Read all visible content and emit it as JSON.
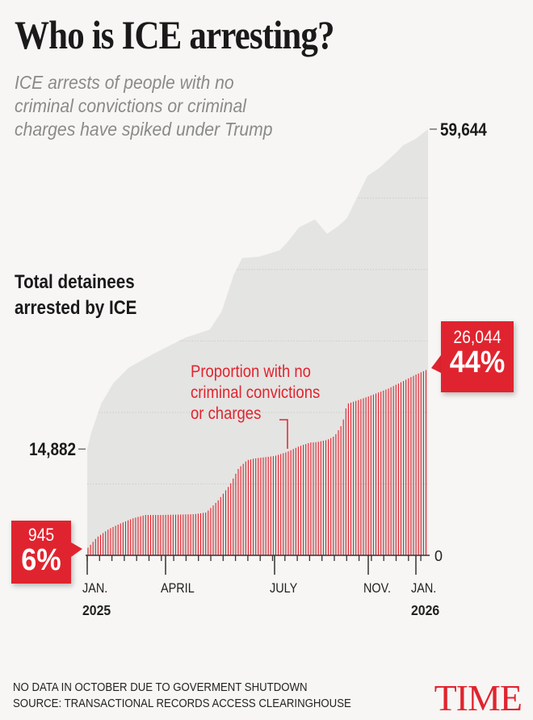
{
  "header": {
    "title": "Who is ICE arresting?",
    "subtitle": "ICE arrests of people with no criminal convictions or criminal charges have spiked under Trump"
  },
  "chart_data": {
    "type": "area",
    "title": "Who is ICE arresting?",
    "xlabel": "",
    "ylabel": "",
    "x_unit": "days since Jan. 1, 2025 (approx.)",
    "ylim": [
      0,
      59644
    ],
    "grid": true,
    "gridlines": [
      10000,
      20000,
      30000,
      40000,
      50000
    ],
    "x_ticks": [
      {
        "day": 0,
        "label": "JAN.",
        "year": "2025"
      },
      {
        "day": 90,
        "label": "APRIL",
        "year": ""
      },
      {
        "day": 181,
        "label": "JULY",
        "year": ""
      },
      {
        "day": 304,
        "label": "NOV.",
        "year": ""
      },
      {
        "day": 365,
        "label": "JAN.",
        "year": "2026"
      }
    ],
    "y_labels": [
      {
        "value": 14882,
        "label": "14,882"
      },
      {
        "value": 59644,
        "label": "59,644"
      },
      {
        "value": 0,
        "label": "0"
      }
    ],
    "series": [
      {
        "name": "Total detainees arrested by ICE",
        "color": "#e4e4e2",
        "x": [
          0,
          5,
          16,
          30,
          48,
          76,
          107,
          127,
          137,
          147,
          154,
          168,
          188,
          200,
          213,
          234,
          250,
          265,
          276,
          303,
          318,
          339,
          349,
          365,
          380
        ],
        "y": [
          14882,
          17300,
          21200,
          24100,
          26300,
          28200,
          30500,
          31600,
          34200,
          39300,
          41600,
          41800,
          42700,
          44100,
          45900,
          47000,
          45000,
          46100,
          47200,
          53100,
          54200,
          56300,
          57400,
          58300,
          59644
        ]
      },
      {
        "name": "Proportion with no criminal convictions or charges",
        "color": "#e0242f",
        "x": [
          0,
          11,
          25,
          39,
          53,
          67,
          86,
          114,
          124,
          134,
          144,
          151,
          158,
          164,
          181,
          197,
          213,
          228,
          234,
          250,
          260,
          270,
          276,
          293,
          308,
          329,
          349,
          365,
          380
        ],
        "y": [
          945,
          2500,
          3700,
          4500,
          5200,
          5650,
          5650,
          5760,
          6000,
          7700,
          9950,
          12200,
          13300,
          13550,
          13900,
          14450,
          15250,
          15800,
          15800,
          16150,
          16700,
          18400,
          21200,
          21800,
          22400,
          23300,
          24400,
          25300,
          26044
        ]
      }
    ],
    "annotations": {
      "series_label": "Total detainees arrested by ICE",
      "proportion_label": "Proportion with no criminal convictions or charges",
      "start": {
        "count": "945",
        "percent": "6%"
      },
      "end": {
        "count": "26,044",
        "percent": "44%"
      }
    }
  },
  "footer": {
    "note": "NO DATA IN OCTOBER DUE TO GOVERMENT SHUTDOWN",
    "source": "SOURCE: TRANSACTIONAL RECORDS ACCESS CLEARINGHOUSE",
    "logo": "TIME"
  }
}
